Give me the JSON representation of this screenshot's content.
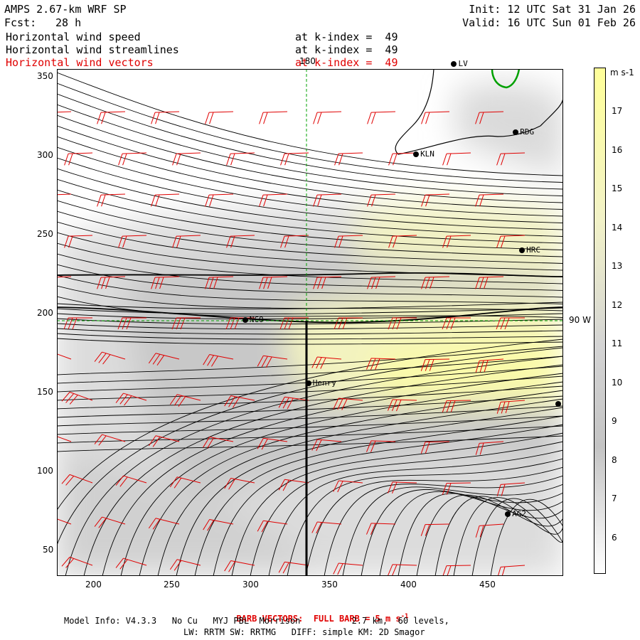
{
  "header": {
    "model": "AMPS 2.67-km WRF SP",
    "forecast_label": "Fcst:",
    "forecast_value": "28 h",
    "init": "Init: 12 UTC Sat 31 Jan 26",
    "valid": "Valid: 16 UTC Sun 01 Feb 26"
  },
  "fields": [
    {
      "name": "Horizontal wind speed",
      "level": "at k-index =  49",
      "color": "#000000"
    },
    {
      "name": "Horizontal wind streamlines",
      "level": "at k-index =  49",
      "color": "#000000"
    },
    {
      "name": "Horizontal wind vectors",
      "level": "at k-index =  49",
      "color": "#e00000"
    }
  ],
  "axes": {
    "x_ticks": [
      "200",
      "250",
      "300",
      "350",
      "400",
      "450"
    ],
    "y_ticks": [
      "350",
      "300",
      "250",
      "200",
      "150",
      "100",
      "50"
    ],
    "top_marker": "180",
    "right_marker": "90 W"
  },
  "colorbar": {
    "units": "m s-1",
    "levels": [
      "17",
      "16",
      "15",
      "14",
      "13",
      "12",
      "11",
      "10",
      "9",
      "8",
      "7",
      "6"
    ]
  },
  "stations": [
    {
      "label": "LV",
      "x": 426,
      "y": 357
    },
    {
      "label": "RDG",
      "x": 465,
      "y": 314
    },
    {
      "label": "KLN",
      "x": 402,
      "y": 300
    },
    {
      "label": "HRC",
      "x": 469,
      "y": 239
    },
    {
      "label": "NCO",
      "x": 294,
      "y": 195
    },
    {
      "label": "Henry",
      "x": 334,
      "y": 155
    },
    {
      "label": "AG2",
      "x": 460,
      "y": 72
    },
    {
      "label": "",
      "x": 492,
      "y": 142
    }
  ],
  "footer": {
    "barb_note_prefix": "BARB VECTORS:  FULL BARB = 5 m s",
    "barb_note_exp": "-1",
    "model_info": "Model Info: V4.3.3   No Cu   MYJ PBL  Morrison          2.7 km,  60 levels,",
    "physics": "LW: RRTM SW: RRTMG   DIFF: simple KM: 2D Smagor"
  },
  "colors": {
    "barb": "#e00000",
    "coast": "#00a000",
    "guide": "#00a000",
    "cb_top": "#ffff99",
    "cb_bottom": "#ffffff"
  }
}
